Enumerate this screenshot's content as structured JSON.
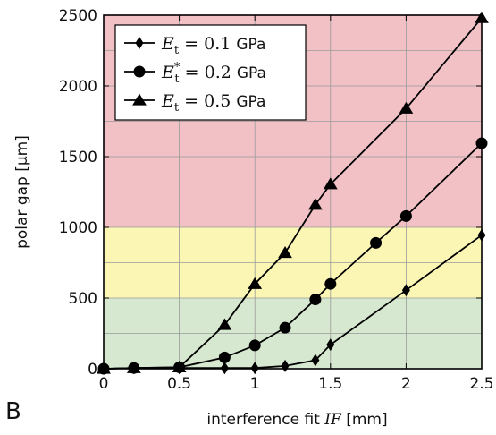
{
  "panel_label": "B",
  "chart_data": {
    "type": "line",
    "xlabel_prefix": "interference fit ",
    "xlabel_symbol": "IF",
    "xlabel_suffix": " [mm]",
    "ylabel": "polar gap [µm]",
    "xlim": [
      0,
      2.5
    ],
    "ylim": [
      0,
      2500
    ],
    "xticks": [
      0,
      0.5,
      1,
      1.5,
      2,
      2.5
    ],
    "xtick_labels": [
      "0",
      "0.5",
      "1",
      "1.5",
      "2",
      "2.5"
    ],
    "yticks": [
      0,
      500,
      1000,
      1500,
      2000,
      2500
    ],
    "ytick_labels": [
      "0",
      "500",
      "1000",
      "1500",
      "2000",
      "2500"
    ],
    "grid": true,
    "legend_position": "top-left",
    "bands": [
      {
        "from": 0,
        "to": 500,
        "color": "#d6e8cf"
      },
      {
        "from": 500,
        "to": 1000,
        "color": "#fbf6b4"
      },
      {
        "from": 1000,
        "to": 2500,
        "color": "#f1c1c6"
      }
    ],
    "series": [
      {
        "name": "E_t = 0.1 GPa",
        "legend": {
          "symbol": "E",
          "sub": "t",
          "sup": "",
          "value": " = 0.1 ",
          "unit": "GPa"
        },
        "marker": "diamond",
        "x": [
          0,
          0.2,
          0.5,
          0.8,
          1.0,
          1.2,
          1.4,
          1.5,
          2.0,
          2.5
        ],
        "y": [
          0,
          5,
          5,
          5,
          5,
          20,
          60,
          170,
          555,
          945
        ]
      },
      {
        "name": "E_t* = 0.2 GPa",
        "legend": {
          "symbol": "E",
          "sub": "t",
          "sup": "*",
          "value": " = 0.2 ",
          "unit": "GPa"
        },
        "marker": "circle",
        "x": [
          0,
          0.2,
          0.5,
          0.8,
          1.0,
          1.2,
          1.4,
          1.5,
          1.8,
          2.0,
          2.5
        ],
        "y": [
          0,
          5,
          10,
          80,
          165,
          290,
          490,
          600,
          890,
          1080,
          1595
        ]
      },
      {
        "name": "E_t = 0.5 GPa",
        "legend": {
          "symbol": "E",
          "sub": "t",
          "sup": "",
          "value": " = 0.5 ",
          "unit": "GPa"
        },
        "marker": "triangle",
        "x": [
          0,
          0.2,
          0.5,
          0.8,
          1.0,
          1.2,
          1.4,
          1.5,
          2.0,
          2.5
        ],
        "y": [
          0,
          5,
          10,
          310,
          600,
          820,
          1160,
          1305,
          1840,
          2480
        ]
      }
    ]
  }
}
